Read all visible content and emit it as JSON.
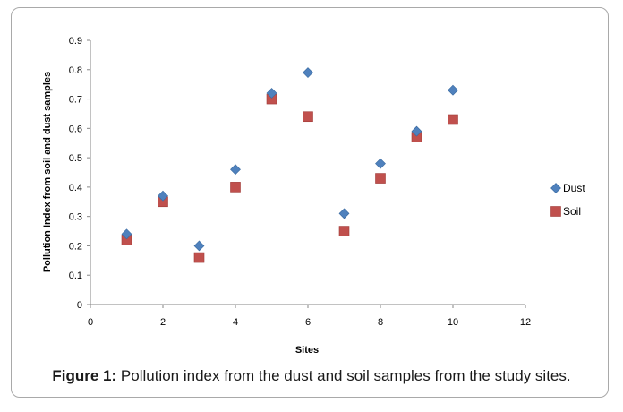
{
  "caption": {
    "label": "Figure 1:",
    "text": " Pollution index from the dust and soil samples from the study sites."
  },
  "chart_data": {
    "type": "scatter",
    "title": "",
    "xlabel": "Sites",
    "ylabel": "Pollution Index from soil and dust samples",
    "xlim": [
      0,
      12
    ],
    "ylim": [
      0,
      0.9
    ],
    "xticks": [
      "0",
      "2",
      "4",
      "6",
      "8",
      "10",
      "12"
    ],
    "yticks": [
      "0",
      "0.1",
      "0.2",
      "0.3",
      "0.4",
      "0.5",
      "0.6",
      "0.7",
      "0.8",
      "0.9"
    ],
    "grid": false,
    "legend_position": "right",
    "series": [
      {
        "name": "Dust",
        "marker": "diamond",
        "color": "#4f81bd",
        "x": [
          1,
          2,
          3,
          4,
          5,
          6,
          7,
          8,
          9,
          10
        ],
        "y": [
          0.24,
          0.37,
          0.2,
          0.46,
          0.72,
          0.79,
          0.31,
          0.48,
          0.59,
          0.73
        ]
      },
      {
        "name": "Soil",
        "marker": "square",
        "color": "#c0504d",
        "x": [
          1,
          2,
          3,
          4,
          5,
          6,
          7,
          8,
          9,
          10
        ],
        "y": [
          0.22,
          0.35,
          0.16,
          0.4,
          0.7,
          0.64,
          0.25,
          0.43,
          0.57,
          0.63
        ]
      }
    ]
  }
}
